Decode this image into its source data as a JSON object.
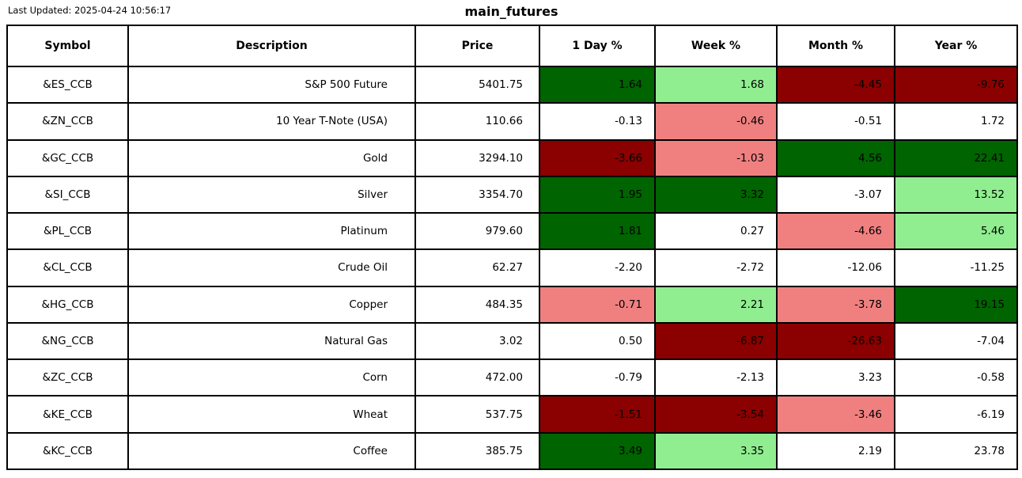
{
  "header": {
    "last_updated": "Last Updated: 2025-04-24 10:56:17",
    "title": "main_futures"
  },
  "colors": {
    "dark_green": "#006400",
    "light_green": "#90EE90",
    "dark_red": "#8B0000",
    "light_red": "#F08080",
    "neutral": "#FFFFFF",
    "border": "#000000",
    "text": "#000000"
  },
  "chart_data": {
    "type": "table",
    "title": "main_futures",
    "columns": [
      "Symbol",
      "Description",
      "Price",
      "1 Day %",
      "Week %",
      "Month %",
      "Year %"
    ],
    "rows": [
      {
        "symbol": "&ES_CCB",
        "description": "S&P 500 Future",
        "price": "5401.75",
        "changes": [
          {
            "value": "1.64",
            "color": "dark_green"
          },
          {
            "value": "1.68",
            "color": "light_green"
          },
          {
            "value": "-4.45",
            "color": "dark_red"
          },
          {
            "value": "-9.76",
            "color": "dark_red"
          }
        ]
      },
      {
        "symbol": "&ZN_CCB",
        "description": "10 Year T-Note (USA)",
        "price": "110.66",
        "changes": [
          {
            "value": "-0.13",
            "color": "neutral"
          },
          {
            "value": "-0.46",
            "color": "light_red"
          },
          {
            "value": "-0.51",
            "color": "neutral"
          },
          {
            "value": "1.72",
            "color": "neutral"
          }
        ]
      },
      {
        "symbol": "&GC_CCB",
        "description": "Gold",
        "price": "3294.10",
        "changes": [
          {
            "value": "-3.66",
            "color": "dark_red"
          },
          {
            "value": "-1.03",
            "color": "light_red"
          },
          {
            "value": "4.56",
            "color": "dark_green"
          },
          {
            "value": "22.41",
            "color": "dark_green"
          }
        ]
      },
      {
        "symbol": "&SI_CCB",
        "description": "Silver",
        "price": "3354.70",
        "changes": [
          {
            "value": "1.95",
            "color": "dark_green"
          },
          {
            "value": "3.32",
            "color": "dark_green"
          },
          {
            "value": "-3.07",
            "color": "neutral"
          },
          {
            "value": "13.52",
            "color": "light_green"
          }
        ]
      },
      {
        "symbol": "&PL_CCB",
        "description": "Platinum",
        "price": "979.60",
        "changes": [
          {
            "value": "1.81",
            "color": "dark_green"
          },
          {
            "value": "0.27",
            "color": "neutral"
          },
          {
            "value": "-4.66",
            "color": "light_red"
          },
          {
            "value": "5.46",
            "color": "light_green"
          }
        ]
      },
      {
        "symbol": "&CL_CCB",
        "description": "Crude Oil",
        "price": "62.27",
        "changes": [
          {
            "value": "-2.20",
            "color": "neutral"
          },
          {
            "value": "-2.72",
            "color": "neutral"
          },
          {
            "value": "-12.06",
            "color": "neutral"
          },
          {
            "value": "-11.25",
            "color": "neutral"
          }
        ]
      },
      {
        "symbol": "&HG_CCB",
        "description": "Copper",
        "price": "484.35",
        "changes": [
          {
            "value": "-0.71",
            "color": "light_red"
          },
          {
            "value": "2.21",
            "color": "light_green"
          },
          {
            "value": "-3.78",
            "color": "light_red"
          },
          {
            "value": "19.15",
            "color": "dark_green"
          }
        ]
      },
      {
        "symbol": "&NG_CCB",
        "description": "Natural Gas",
        "price": "3.02",
        "changes": [
          {
            "value": "0.50",
            "color": "neutral"
          },
          {
            "value": "-6.87",
            "color": "dark_red"
          },
          {
            "value": "-26.63",
            "color": "dark_red"
          },
          {
            "value": "-7.04",
            "color": "neutral"
          }
        ]
      },
      {
        "symbol": "&ZC_CCB",
        "description": "Corn",
        "price": "472.00",
        "changes": [
          {
            "value": "-0.79",
            "color": "neutral"
          },
          {
            "value": "-2.13",
            "color": "neutral"
          },
          {
            "value": "3.23",
            "color": "neutral"
          },
          {
            "value": "-0.58",
            "color": "neutral"
          }
        ]
      },
      {
        "symbol": "&KE_CCB",
        "description": "Wheat",
        "price": "537.75",
        "changes": [
          {
            "value": "-1.51",
            "color": "dark_red"
          },
          {
            "value": "-3.54",
            "color": "dark_red"
          },
          {
            "value": "-3.46",
            "color": "light_red"
          },
          {
            "value": "-6.19",
            "color": "neutral"
          }
        ]
      },
      {
        "symbol": "&KC_CCB",
        "description": "Coffee",
        "price": "385.75",
        "changes": [
          {
            "value": "3.49",
            "color": "dark_green"
          },
          {
            "value": "3.35",
            "color": "light_green"
          },
          {
            "value": "2.19",
            "color": "neutral"
          },
          {
            "value": "23.78",
            "color": "neutral"
          }
        ]
      }
    ]
  }
}
